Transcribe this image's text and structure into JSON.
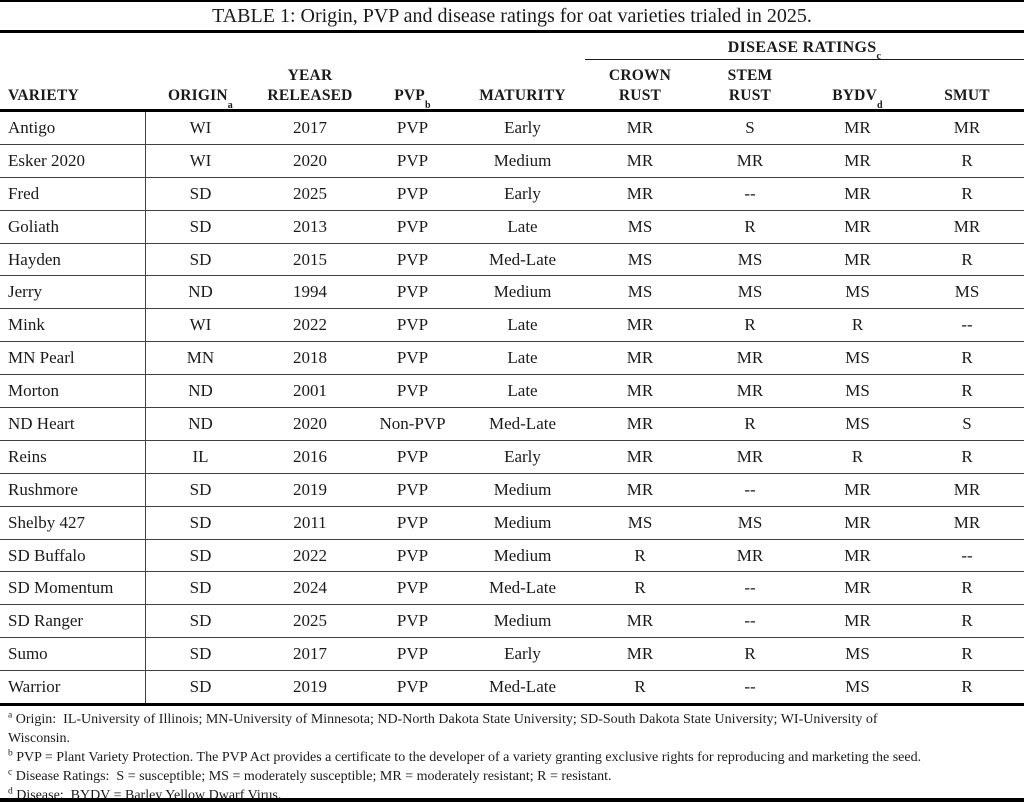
{
  "table": {
    "title": "TABLE 1: Origin, PVP and disease ratings for oat varieties trialed in 2025.",
    "group_header": {
      "label": "DISEASE RATINGS",
      "sup": "c"
    },
    "columns": [
      {
        "label": "VARIETY",
        "sup": ""
      },
      {
        "label": "ORIGIN",
        "sup": "a"
      },
      {
        "label": "YEAR\nRELEASED",
        "sup": ""
      },
      {
        "label": "PVP",
        "sup": "b"
      },
      {
        "label": "MATURITY",
        "sup": ""
      },
      {
        "label": "CROWN\nRUST",
        "sup": ""
      },
      {
        "label": "STEM\nRUST",
        "sup": ""
      },
      {
        "label": "BYDV",
        "sup": "d"
      },
      {
        "label": "SMUT",
        "sup": ""
      }
    ],
    "rows": [
      [
        "Antigo",
        "WI",
        "2017",
        "PVP",
        "Early",
        "MR",
        "S",
        "MR",
        "MR"
      ],
      [
        "Esker 2020",
        "WI",
        "2020",
        "PVP",
        "Medium",
        "MR",
        "MR",
        "MR",
        "R"
      ],
      [
        "Fred",
        "SD",
        "2025",
        "PVP",
        "Early",
        "MR",
        "--",
        "MR",
        "R"
      ],
      [
        "Goliath",
        "SD",
        "2013",
        "PVP",
        "Late",
        "MS",
        "R",
        "MR",
        "MR"
      ],
      [
        "Hayden",
        "SD",
        "2015",
        "PVP",
        "Med-Late",
        "MS",
        "MS",
        "MR",
        "R"
      ],
      [
        "Jerry",
        "ND",
        "1994",
        "PVP",
        "Medium",
        "MS",
        "MS",
        "MS",
        "MS"
      ],
      [
        "Mink",
        "WI",
        "2022",
        "PVP",
        "Late",
        "MR",
        "R",
        "R",
        "--"
      ],
      [
        "MN Pearl",
        "MN",
        "2018",
        "PVP",
        "Late",
        "MR",
        "MR",
        "MS",
        "R"
      ],
      [
        "Morton",
        "ND",
        "2001",
        "PVP",
        "Late",
        "MR",
        "MR",
        "MS",
        "R"
      ],
      [
        "ND Heart",
        "ND",
        "2020",
        "Non-PVP",
        "Med-Late",
        "MR",
        "R",
        "MS",
        "S"
      ],
      [
        "Reins",
        "IL",
        "2016",
        "PVP",
        "Early",
        "MR",
        "MR",
        "R",
        "R"
      ],
      [
        "Rushmore",
        "SD",
        "2019",
        "PVP",
        "Medium",
        "MR",
        "--",
        "MR",
        "MR"
      ],
      [
        "Shelby 427",
        "SD",
        "2011",
        "PVP",
        "Medium",
        "MS",
        "MS",
        "MR",
        "MR"
      ],
      [
        "SD Buffalo",
        "SD",
        "2022",
        "PVP",
        "Medium",
        "R",
        "MR",
        "MR",
        "--"
      ],
      [
        "SD Momentum",
        "SD",
        "2024",
        "PVP",
        "Med-Late",
        "R",
        "--",
        "MR",
        "R"
      ],
      [
        "SD Ranger",
        "SD",
        "2025",
        "PVP",
        "Medium",
        "MR",
        "--",
        "MR",
        "R"
      ],
      [
        "Sumo",
        "SD",
        "2017",
        "PVP",
        "Early",
        "MR",
        "R",
        "MS",
        "R"
      ],
      [
        "Warrior",
        "SD",
        "2019",
        "PVP",
        "Med-Late",
        "R",
        "--",
        "MS",
        "R"
      ]
    ]
  },
  "footnotes": [
    {
      "sup": "a",
      "text": " Origin:  IL-University of Illinois; MN-University of Minnesota; ND-North Dakota State University; SD-South Dakota State University; WI-University of\nWisconsin."
    },
    {
      "sup": "b",
      "text": " PVP = Plant Variety Protection. The PVP Act provides a certificate to the developer of a variety granting exclusive rights for reproducing and marketing the seed."
    },
    {
      "sup": "c",
      "text": " Disease Ratings:  S = susceptible; MS = moderately susceptible; MR = moderately resistant; R = resistant."
    },
    {
      "sup": "d",
      "text": " Disease:  BYDV = Barley Yellow Dwarf Virus."
    }
  ]
}
